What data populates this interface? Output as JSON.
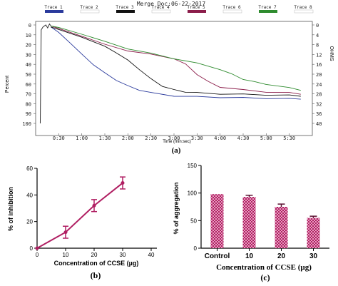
{
  "panels": {
    "a": "(a)",
    "b": "(b)",
    "c": "(c)"
  },
  "chart_data": [
    {
      "id": "a",
      "type": "line",
      "title": "Merge Doc:06-22-2017",
      "xlabel": "Time (min:sec)",
      "ylabel": "Percent",
      "y2label": "OHMS",
      "x_ticks": [
        "0:30",
        "1:00",
        "1:30",
        "2:00",
        "2:30",
        "3:00",
        "3:30",
        "4:00",
        "4:30",
        "5:00",
        "5:30"
      ],
      "y_ticks": [
        "0",
        "10",
        "20",
        "30",
        "40",
        "50",
        "60",
        "70",
        "80",
        "90",
        "100"
      ],
      "y2_ticks": [
        "0",
        "4",
        "8",
        "12",
        "16",
        "20",
        "24",
        "28",
        "32",
        "36",
        "40"
      ],
      "xlim": [
        0,
        6
      ],
      "ylim": [
        100,
        0
      ],
      "legend": [
        "Trace 1",
        "Trace 2",
        "Trace 3",
        "Trace 4",
        "Trace 5",
        "Trace 6",
        "Trace 7",
        "Trace 8"
      ],
      "legend_colors": [
        "#2a3a9c",
        "#ffffff",
        "#111111",
        "#ffffff",
        "#8b1d4a",
        "#ffffff",
        "#2e8b2e",
        "#ffffff"
      ],
      "series": [
        {
          "legend_index": 0,
          "color": "#2a3a9c",
          "x": [
            0.33,
            0.5,
            0.75,
            1.0,
            1.25,
            1.5,
            1.75,
            2.0,
            2.25,
            2.5,
            3.0,
            3.5,
            4.0,
            4.5,
            5.0,
            5.5,
            5.75
          ],
          "y": [
            2,
            8,
            18,
            30,
            40,
            49,
            56,
            62,
            66,
            69,
            72,
            73,
            73.5,
            74,
            74.5,
            75,
            75
          ]
        },
        {
          "legend_index": 2,
          "color": "#111111",
          "x": [
            0.33,
            0.5,
            1.0,
            1.5,
            1.75,
            2.0,
            2.25,
            2.5,
            2.75,
            3.0,
            3.25,
            3.5,
            4.0,
            4.5,
            5.0,
            5.5,
            5.75
          ],
          "y": [
            2,
            5,
            12,
            22,
            28,
            36,
            45,
            55,
            62,
            66,
            68,
            69,
            70,
            70.5,
            71,
            71.5,
            72
          ]
        },
        {
          "legend_index": 4,
          "color": "#8b1d4a",
          "x": [
            0.33,
            0.5,
            1.0,
            1.5,
            2.0,
            2.5,
            3.0,
            3.25,
            3.5,
            3.75,
            4.0,
            4.5,
            5.0,
            5.5,
            5.75
          ],
          "y": [
            1,
            4,
            11,
            20,
            26,
            30,
            34,
            40,
            50,
            58,
            63,
            66,
            68,
            69,
            70
          ]
        },
        {
          "legend_index": 6,
          "color": "#2e8b2e",
          "x": [
            0.33,
            0.5,
            1.0,
            1.5,
            2.0,
            2.5,
            3.0,
            3.5,
            4.0,
            4.25,
            4.5,
            4.75,
            5.0,
            5.5,
            5.75
          ],
          "y": [
            1,
            3,
            9,
            17,
            24,
            29,
            34,
            39,
            45,
            50,
            55,
            58,
            60,
            64,
            66
          ]
        }
      ]
    },
    {
      "id": "b",
      "type": "line",
      "xlabel": "Concentration  of CCSE (µg)",
      "ylabel": "% of inhibition",
      "xlim": [
        0,
        40
      ],
      "ylim": [
        0,
        60
      ],
      "x_ticks": [
        "0",
        "10",
        "20",
        "30",
        "40"
      ],
      "y_ticks": [
        "0",
        "20",
        "40",
        "60"
      ],
      "color": "#b01e62",
      "x": [
        0,
        10,
        20,
        30
      ],
      "y": [
        0,
        12,
        32,
        49
      ],
      "error": [
        0,
        4.5,
        4.5,
        4.5
      ]
    },
    {
      "id": "c",
      "type": "bar",
      "xlabel": "Concentration of CCSE (µg)",
      "ylabel": "% of aggregation",
      "ylim": [
        0,
        150
      ],
      "y_ticks": [
        "0",
        "50",
        "100",
        "150"
      ],
      "categories": [
        "Control",
        "10",
        "20",
        "30"
      ],
      "values": [
        98,
        93,
        75,
        55
      ],
      "error": [
        0,
        3,
        5,
        3
      ],
      "bar_color": "#b01e62",
      "bar_pattern": "checkered"
    }
  ]
}
